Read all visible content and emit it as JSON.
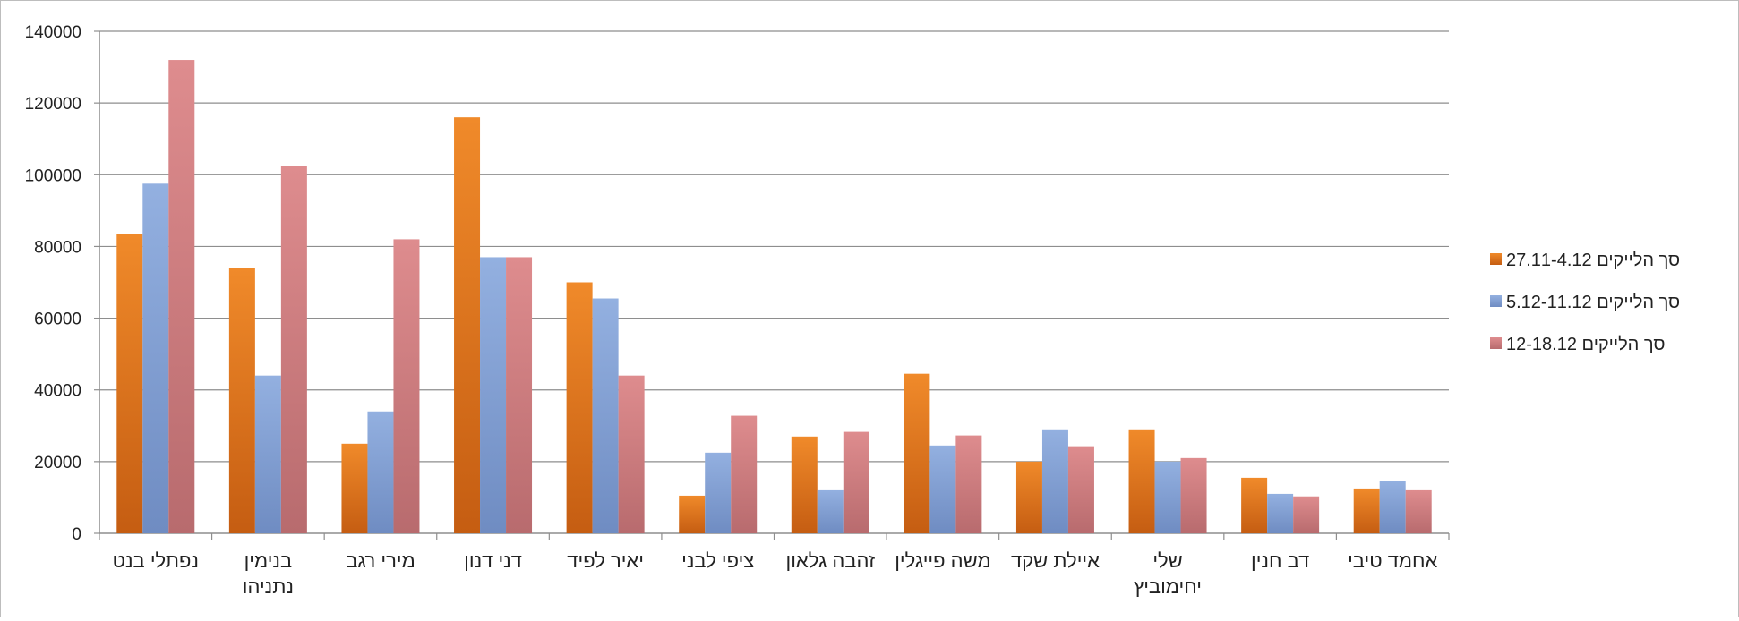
{
  "chart_data": {
    "type": "bar",
    "categories": [
      [
        "נפתלי בנט"
      ],
      [
        "בנימין",
        "נתניהו"
      ],
      [
        "מירי רגב"
      ],
      [
        "דני דנון"
      ],
      [
        "יאיר לפיד"
      ],
      [
        "ציפי לבני"
      ],
      [
        "זהבה גלאון"
      ],
      [
        "משה פייגלין"
      ],
      [
        "איילת שקד"
      ],
      [
        "שלי",
        "יחימוביץ"
      ],
      [
        "דב חנין"
      ],
      [
        "אחמד טיבי"
      ]
    ],
    "series": [
      {
        "name": "סך הלייקים 27.11-4.12",
        "color": "#e2761f",
        "values": [
          83500,
          74000,
          25000,
          116000,
          70000,
          10500,
          27000,
          44500,
          20000,
          29000,
          15500,
          12500
        ]
      },
      {
        "name": "סך הלייקים 5.12-11.12",
        "color": "#7f9fd4",
        "values": [
          97500,
          44000,
          34000,
          77000,
          65500,
          22500,
          12000,
          24500,
          29000,
          20000,
          11000,
          14500
        ]
      },
      {
        "name": "סך הלייקים 12-18.12",
        "color": "#cd7b7e",
        "values": [
          132000,
          102500,
          82000,
          77000,
          44000,
          32800,
          28300,
          27300,
          24300,
          21000,
          10300,
          12000
        ]
      }
    ],
    "yticks": [
      "0",
      "20000",
      "40000",
      "60000",
      "80000",
      "100000",
      "120000",
      "140000"
    ],
    "ylim": [
      0,
      140000
    ],
    "grid": true,
    "legend_position": "right"
  }
}
